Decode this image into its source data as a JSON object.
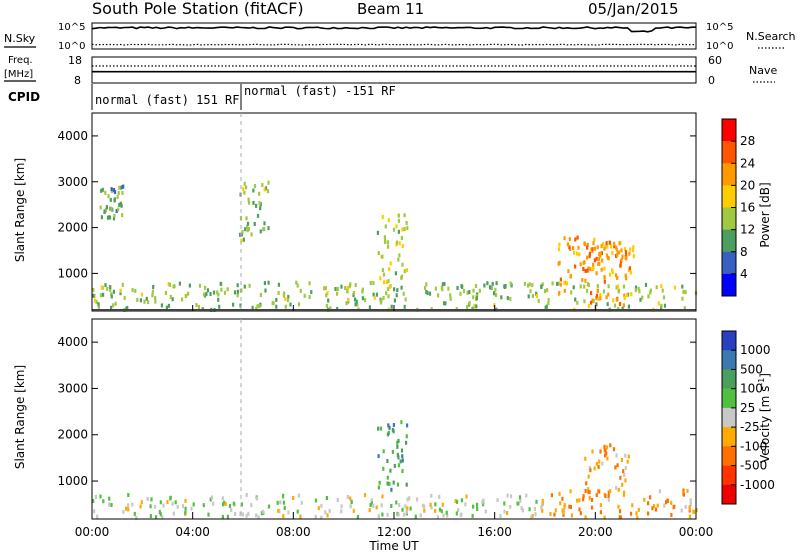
{
  "header": {
    "station": "South Pole Station (fitACF)",
    "beam": "Beam 11",
    "date": "05/Jan/2015"
  },
  "left_labels": {
    "nsky": "N.Sky",
    "freq": "Freq.",
    "freq_unit": "[MHz]",
    "cpid": "CPID"
  },
  "right_labels": {
    "nsearch": "N.Search",
    "nave": "Nave"
  },
  "noise_axis": {
    "left_ticks": [
      "10^5",
      "10^0"
    ],
    "right_ticks": [
      "10^5",
      "10^0"
    ]
  },
  "freq_axis": {
    "left_ticks": [
      "18",
      "8"
    ],
    "right_ticks": [
      "60",
      "0"
    ]
  },
  "cpid": {
    "segments": [
      "normal (fast) 151 RF",
      "normal (fast) -151 RF"
    ]
  },
  "x_axis": {
    "label": "Time UT",
    "ticks": [
      "00:00",
      "04:00",
      "08:00",
      "12:00",
      "16:00",
      "20:00",
      "00:00"
    ]
  },
  "power_panel": {
    "ylabel": "Slant Range [km]",
    "yticks": [
      "4000",
      "3000",
      "2000",
      "1000"
    ],
    "colorbar_label": "Power [dB]",
    "colorbar_ticks": [
      "28",
      "24",
      "20",
      "16",
      "12",
      "8",
      "4"
    ],
    "colors": [
      "#ff0000",
      "#ff5500",
      "#ff9900",
      "#ffcc00",
      "#a0c840",
      "#4c9e5e",
      "#3860c0",
      "#0000ff"
    ]
  },
  "velocity_panel": {
    "ylabel": "Slant Range [km]",
    "yticks": [
      "4000",
      "3000",
      "2000",
      "1000"
    ],
    "colorbar_label": "Velocity [m s",
    "colorbar_label_sup": "-1",
    "colorbar_label_end": "]",
    "colorbar_ticks": [
      "1000",
      "500",
      "100",
      "25",
      "-25",
      "-100",
      "-500",
      "-1000"
    ],
    "colors": [
      "#2840c0",
      "#3a7ab0",
      "#4c9e5e",
      "#50c040",
      "#c8c8c8",
      "#ffaa00",
      "#ff7000",
      "#ff3300",
      "#ee0000"
    ]
  },
  "chart_data": {
    "type": "heatmap",
    "title": "South Pole Station (fitACF)",
    "xlabel": "Time UT",
    "ylabel": "Slant Range [km]",
    "xlim": [
      0,
      24
    ],
    "ylim": [
      180,
      4500
    ],
    "series": [
      {
        "name": "Power [dB]",
        "range": [
          0,
          30
        ],
        "regions": [
          {
            "t_start": 0.0,
            "t_end": 24.0,
            "r_start": 200,
            "r_end": 800,
            "level": 12
          },
          {
            "t_start": 0.3,
            "t_end": 1.2,
            "r_start": 2200,
            "r_end": 2900,
            "level": 10
          },
          {
            "t_start": 5.8,
            "t_end": 7.0,
            "r_start": 1700,
            "r_end": 3000,
            "level": 12
          },
          {
            "t_start": 11.3,
            "t_end": 12.5,
            "r_start": 500,
            "r_end": 2300,
            "level": 14
          },
          {
            "t_start": 18.5,
            "t_end": 21.5,
            "r_start": 300,
            "r_end": 1800,
            "level": 20
          },
          {
            "t_start": 19.5,
            "t_end": 21.2,
            "r_start": 1000,
            "r_end": 1700,
            "level": 22
          }
        ]
      },
      {
        "name": "Velocity [m s-1]",
        "range": [
          -1000,
          1000
        ],
        "regions": [
          {
            "t_start": 0.0,
            "t_end": 18.0,
            "r_start": 200,
            "r_end": 700,
            "level": 50
          },
          {
            "t_start": 11.3,
            "t_end": 12.5,
            "r_start": 800,
            "r_end": 2300,
            "level": 400
          },
          {
            "t_start": 18.0,
            "t_end": 24.0,
            "r_start": 200,
            "r_end": 800,
            "level": -300
          },
          {
            "t_start": 19.5,
            "t_end": 21.3,
            "r_start": 700,
            "r_end": 1800,
            "level": -250
          }
        ]
      }
    ],
    "noise": {
      "ylim_log10": [
        0,
        5
      ],
      "sky_level_log10": 4.2,
      "search_level_log10": 0.7
    },
    "freq": {
      "ylim": [
        8,
        18
      ],
      "value": 12.3
    },
    "nave": {
      "ylim": [
        0,
        60
      ],
      "value": 40
    }
  }
}
